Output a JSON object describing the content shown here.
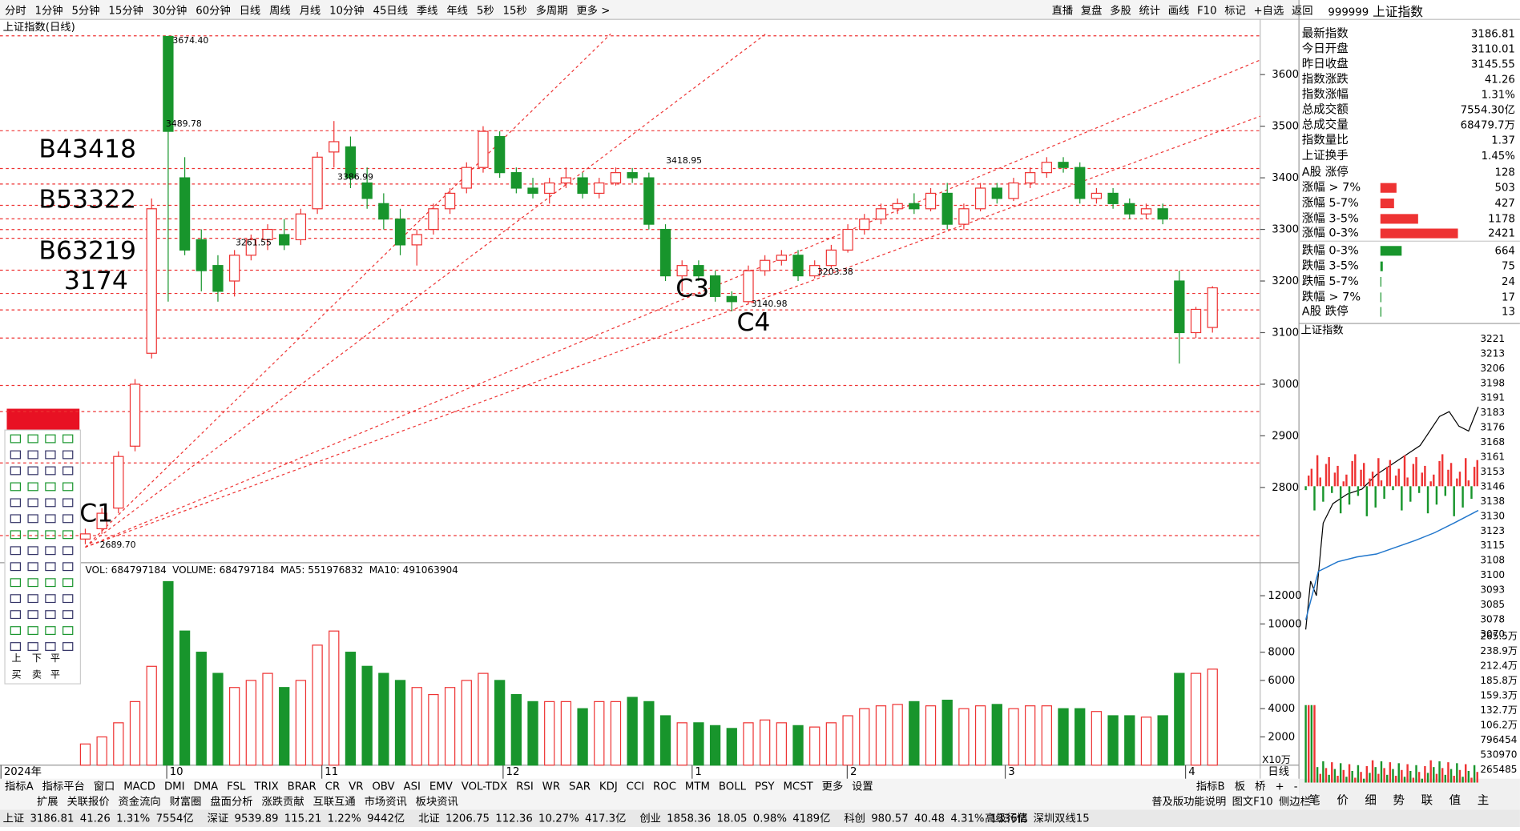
{
  "toolbar": {
    "left": [
      "分时",
      "1分钟",
      "5分钟",
      "15分钟",
      "30分钟",
      "60分钟",
      "日线",
      "周线",
      "月线",
      "10分钟",
      "45日线",
      "季线",
      "年线",
      "5秒",
      "15秒",
      "多周期",
      "更多 >"
    ],
    "right": [
      "直播",
      "复盘",
      "多股",
      "统计",
      "画线",
      "F10",
      "标记",
      "+自选",
      "返回"
    ]
  },
  "header": {
    "code": "999999",
    "name": "上证指数"
  },
  "chart_data": {
    "type": "candlestick",
    "title": "上证指数(日线)",
    "period": "日线",
    "candles": {
      "open": [
        2700,
        2720,
        2760,
        2880,
        3060,
        3674,
        3400,
        3280,
        3230,
        3200,
        3250,
        3280,
        3290,
        3280,
        3340,
        3450,
        3460,
        3390,
        3350,
        3320,
        3270,
        3300,
        3340,
        3380,
        3420,
        3480,
        3410,
        3380,
        3370,
        3390,
        3400,
        3370,
        3390,
        3410,
        3400,
        3300,
        3210,
        3230,
        3210,
        3170,
        3160,
        3220,
        3240,
        3250,
        3210,
        3230,
        3260,
        3300,
        3320,
        3340,
        3350,
        3340,
        3370,
        3310,
        3340,
        3380,
        3360,
        3390,
        3410,
        3430,
        3420,
        3360,
        3370,
        3350,
        3330,
        3340,
        3200,
        3100,
        3110.01
      ],
      "high": [
        2720,
        2760,
        2870,
        3010,
        3360,
        3674,
        3440,
        3300,
        3250,
        3260,
        3290,
        3310,
        3320,
        3340,
        3450,
        3510,
        3480,
        3420,
        3370,
        3340,
        3300,
        3350,
        3380,
        3430,
        3500,
        3490,
        3420,
        3400,
        3400,
        3420,
        3410,
        3400,
        3420,
        3419,
        3410,
        3310,
        3240,
        3240,
        3220,
        3180,
        3230,
        3250,
        3260,
        3260,
        3240,
        3270,
        3310,
        3330,
        3350,
        3360,
        3370,
        3380,
        3390,
        3350,
        3390,
        3390,
        3400,
        3420,
        3440,
        3440,
        3430,
        3380,
        3380,
        3360,
        3350,
        3350,
        3220,
        3150,
        3190
      ],
      "low": [
        2690,
        2710,
        2750,
        2870,
        3050,
        3160,
        3250,
        3180,
        3160,
        3170,
        3240,
        3260,
        3260,
        3270,
        3330,
        3420,
        3380,
        3340,
        3300,
        3250,
        3230,
        3290,
        3330,
        3370,
        3410,
        3400,
        3370,
        3360,
        3350,
        3380,
        3360,
        3360,
        3385,
        3390,
        3300,
        3200,
        3180,
        3200,
        3160,
        3141,
        3155,
        3210,
        3230,
        3200,
        3205,
        3225,
        3255,
        3290,
        3310,
        3330,
        3330,
        3335,
        3300,
        3300,
        3335,
        3350,
        3355,
        3380,
        3400,
        3410,
        3350,
        3350,
        3340,
        3320,
        3320,
        3310,
        3040,
        3090,
        3100
      ],
      "close": [
        2710,
        2750,
        2860,
        3000,
        3340,
        3490,
        3260,
        3220,
        3180,
        3250,
        3280,
        3300,
        3270,
        3330,
        3440,
        3470,
        3400,
        3360,
        3320,
        3270,
        3290,
        3340,
        3370,
        3420,
        3490,
        3410,
        3380,
        3370,
        3390,
        3400,
        3370,
        3390,
        3410,
        3400,
        3310,
        3210,
        3230,
        3210,
        3170,
        3160,
        3220,
        3240,
        3250,
        3210,
        3230,
        3260,
        3300,
        3320,
        3340,
        3350,
        3340,
        3370,
        3310,
        3340,
        3380,
        3360,
        3390,
        3410,
        3430,
        3420,
        3360,
        3370,
        3350,
        3330,
        3340,
        3320,
        3100,
        3145,
        3186.81
      ]
    },
    "ylim": [
      2656,
      3707
    ],
    "yticks": [
      2800,
      2900,
      3000,
      3100,
      3200,
      3300,
      3400,
      3500,
      3600
    ],
    "x_labels": [
      "2024年",
      "10",
      "11",
      "12",
      "1",
      "2",
      "3",
      "4"
    ],
    "annotations": [
      "B43418",
      "B53322",
      "B63219",
      "3174",
      "C1",
      "C3",
      "C4"
    ],
    "price_labels": [
      "3674.40",
      "3489.78",
      "3386.99",
      "3261.55",
      "3418.95",
      "3140.98",
      "3203.38",
      "2689.70"
    ],
    "volume": {
      "legend": [
        "VOL: 684797184",
        "VOLUME: 684797184",
        "MA5: 551976832",
        "MA10: 491063904"
      ],
      "values": [
        1500,
        2000,
        3000,
        4500,
        7000,
        13000,
        9500,
        8000,
        6500,
        5500,
        6000,
        6500,
        5500,
        6000,
        8500,
        9500,
        8000,
        7000,
        6500,
        6000,
        5500,
        5000,
        5500,
        6000,
        6500,
        6000,
        5000,
        4500,
        4500,
        4500,
        4000,
        4500,
        4500,
        4800,
        4500,
        3500,
        3000,
        3000,
        2800,
        2600,
        3000,
        3200,
        3000,
        2800,
        2700,
        3000,
        3500,
        4000,
        4200,
        4300,
        4500,
        4200,
        4600,
        4000,
        4200,
        4300,
        4000,
        4200,
        4200,
        4000,
        4000,
        3800,
        3500,
        3500,
        3400,
        3500,
        6500,
        6500,
        6800
      ],
      "ylim": [
        0,
        14200
      ],
      "yticks": [
        2000,
        4000,
        6000,
        8000,
        10000,
        12000
      ],
      "unit": "X10万"
    }
  },
  "quote": [
    [
      "最新指数",
      "3186.81"
    ],
    [
      "今日开盘",
      "3110.01"
    ],
    [
      "昨日收盘",
      "3145.55"
    ],
    [
      "指数涨跌",
      "41.26"
    ],
    [
      "指数涨幅",
      "1.31%"
    ],
    [
      "总成交额",
      "7554.30亿"
    ],
    [
      "总成交量",
      "68479.7万"
    ],
    [
      "指数量比",
      "1.37"
    ],
    [
      "上证换手",
      "1.45%"
    ]
  ],
  "breadth": [
    {
      "label": "A股 涨停",
      "count": 128
    },
    {
      "label": "涨幅 > 7%",
      "count": 503
    },
    {
      "label": "涨幅 5-7%",
      "count": 427
    },
    {
      "label": "涨幅 3-5%",
      "count": 1178
    },
    {
      "label": "涨幅 0-3%",
      "count": 2421
    },
    {
      "label": "跌幅 0-3%",
      "count": 664
    },
    {
      "label": "跌幅 3-5%",
      "count": 75
    },
    {
      "label": "跌幅 5-7%",
      "count": 24
    },
    {
      "label": "跌幅 > 7%",
      "count": 17
    },
    {
      "label": "A股 跌停",
      "count": 13
    }
  ],
  "intraday": {
    "title": "上证指数",
    "price_ticks": [
      "3221",
      "3213",
      "3206",
      "3198",
      "3191",
      "3183",
      "3176",
      "3168",
      "3161",
      "3153",
      "3146",
      "3138",
      "3130",
      "3123",
      "3115",
      "3108",
      "3100",
      "3093",
      "3085",
      "3078",
      "3070"
    ],
    "volume_ticks": [
      "265.5万",
      "238.9万",
      "212.4万",
      "185.8万",
      "159.3万",
      "132.7万",
      "106.2万",
      "796454",
      "530970",
      "265485"
    ]
  },
  "toolbox": {
    "labels": [
      "上",
      "下",
      "平",
      "买",
      "卖",
      "平"
    ]
  },
  "tabs": {
    "row1": [
      "指标A",
      "指标平台",
      "窗口",
      "MACD",
      "DMI",
      "DMA",
      "FSL",
      "TRIX",
      "BRAR",
      "CR",
      "VR",
      "OBV",
      "ASI",
      "EMV",
      "VOL-TDX",
      "RSI",
      "WR",
      "SAR",
      "KDJ",
      "CCI",
      "ROC",
      "MTM",
      "BOLL",
      "PSY",
      "MCST",
      "更多",
      "设置"
    ],
    "row1_right": [
      "指标B",
      "板",
      "桥",
      "+",
      "-"
    ],
    "row2": [
      "扩展",
      "关联报价",
      "资金流向",
      "财富圈",
      "盘面分析",
      "涨跌贡献",
      "互联互通",
      "市场资讯",
      "板块资讯"
    ],
    "row2_right": [
      "普及版功能说明",
      "图文F10",
      "侧边栏"
    ],
    "side": [
      "笔",
      "价",
      "细",
      "势",
      "联",
      "值",
      "主"
    ]
  },
  "status": [
    [
      "上证",
      "3186.81",
      "41.26",
      "1.31%",
      "7554亿"
    ],
    [
      "深证",
      "9539.89",
      "115.21",
      "1.22%",
      "9442亿"
    ],
    [
      "北证",
      "1206.75",
      "112.36",
      "10.27%",
      "417.3亿"
    ],
    [
      "创业",
      "1858.36",
      "18.05",
      "0.98%",
      "4189亿"
    ],
    [
      "科创",
      "980.57",
      "40.48",
      "4.31%",
      "1336亿"
    ]
  ],
  "status_right": [
    "高级行情",
    "深圳双线15"
  ]
}
